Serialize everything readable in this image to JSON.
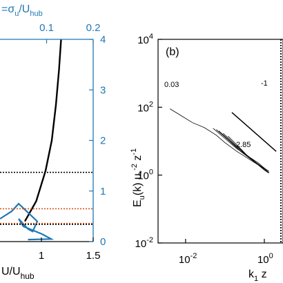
{
  "colors": {
    "turbulence": "#1f77b4",
    "profile": "#000000",
    "orange_line": "#d95319"
  },
  "chart_data": [
    {
      "type": "line",
      "panel": "left",
      "xlabel": "U/U_hub",
      "xlabel_main": "U/U",
      "xlabel_sub": "hub",
      "top_xlabel_prefix": "=σ",
      "top_xlabel_sub1": "u",
      "top_xlabel_mid": "/U",
      "top_xlabel_sub2": "hub",
      "bottom_xticks": [
        "1",
        "1.5"
      ],
      "top_xticks": [
        "0.1",
        "0.2"
      ],
      "right_yticks": [
        "0",
        "1",
        "2",
        "3",
        "4"
      ],
      "xlim": [
        0.6,
        1.5
      ],
      "top_xlim": [
        0,
        0.2
      ],
      "ylim": [
        0,
        4
      ],
      "series": [
        {
          "color": "profile",
          "x": [
            0.84,
            0.95,
            1.04,
            1.1,
            1.14,
            1.17,
            1.19
          ],
          "y": [
            0.4,
            0.8,
            1.4,
            2.0,
            2.7,
            3.4,
            4.0
          ]
        },
        {
          "color": "turbulence",
          "x": [
            0.0,
            0.025,
            0.04,
            0.08,
            0.07,
            0.06,
            0.04,
            0.05,
            0.09,
            0.11,
            0.06
          ],
          "y": [
            0.45,
            0.6,
            0.75,
            0.4,
            0.2,
            0.25,
            0.45,
            0.3,
            0.15,
            0.05,
            0.04
          ]
        }
      ],
      "hlines": [
        {
          "y": 1.37,
          "color": "profile"
        },
        {
          "y": 0.65,
          "color": "orange_line"
        },
        {
          "y": 0.36,
          "color": "orange_line"
        },
        {
          "y": 0.34,
          "color": "profile"
        }
      ]
    },
    {
      "type": "line",
      "panel": "right",
      "panel_label": "(b)",
      "ylabel_main": "E",
      "ylabel_sub": "u",
      "ylabel_rest": "(k) u",
      "ylabel_sub2": "*",
      "ylabel_sup2": "-2",
      "ylabel_z": " z",
      "ylabel_sup3": "-1",
      "xlabel_main": "k",
      "xlabel_sub": "1",
      "xlabel_rest": " z",
      "xscale": "log",
      "yscale": "log",
      "xlim": [
        0.002,
        10
      ],
      "ylim": [
        0.01,
        10000
      ],
      "ytick_base": "10",
      "ytick_exps": [
        "4",
        "2",
        "0",
        "-2"
      ],
      "xtick_base": "10",
      "xtick_exps": [
        "-2",
        "0"
      ],
      "annotations": {
        "low": "0.03",
        "high": "2.85",
        "slope": "-1"
      },
      "slope_line": {
        "x": [
          0.15,
          2.0
        ],
        "y": [
          70,
          5
        ]
      },
      "series": [
        {
          "x": [
            0.004,
            0.008,
            0.015,
            0.03,
            0.06,
            0.1,
            0.2,
            0.4,
            0.7,
            1.0,
            1.3
          ],
          "y": [
            90,
            55,
            35,
            25,
            15,
            9,
            5,
            3,
            2,
            1.5,
            1.2
          ]
        },
        {
          "x": [
            0.05,
            0.1,
            0.2,
            0.4,
            0.7,
            1.0,
            1.3
          ],
          "y": [
            24,
            12,
            6,
            3.5,
            2.3,
            1.6,
            1.3
          ]
        },
        {
          "x": [
            0.06,
            0.12,
            0.25,
            0.5,
            0.8,
            1.1,
            1.3
          ],
          "y": [
            22,
            11,
            5,
            2.7,
            1.8,
            1.4,
            1.2
          ]
        },
        {
          "x": [
            0.07,
            0.15,
            0.3,
            0.55,
            0.9,
            1.2,
            1.3
          ],
          "y": [
            20,
            9,
            4.5,
            2.6,
            1.7,
            1.3,
            1.15
          ]
        },
        {
          "x": [
            0.09,
            0.18,
            0.35,
            0.6,
            1.0,
            1.3
          ],
          "y": [
            17,
            8,
            4,
            2.4,
            1.5,
            1.2
          ]
        },
        {
          "x": [
            0.12,
            0.22,
            0.4,
            0.7,
            1.0,
            1.3
          ],
          "y": [
            14,
            7,
            3.4,
            2.0,
            1.4,
            1.15
          ]
        }
      ]
    }
  ]
}
